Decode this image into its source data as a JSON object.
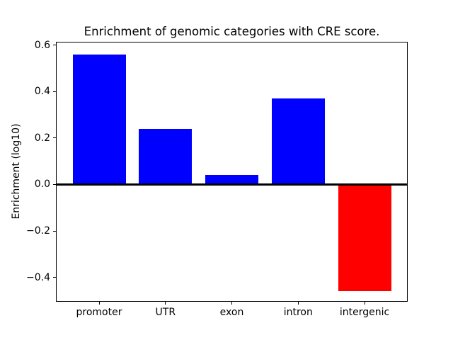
{
  "chart_data": {
    "type": "bar",
    "title": "Enrichment of genomic categories with CRE score.",
    "ylabel": "Enrichment (log10)",
    "xlabel": "",
    "categories": [
      "promoter",
      "UTR",
      "exon",
      "intron",
      "intergenic"
    ],
    "values": [
      0.56,
      0.24,
      0.04,
      0.37,
      -0.46
    ],
    "bar_colors": [
      "#0000ff",
      "#0000ff",
      "#0000ff",
      "#0000ff",
      "#ff0000"
    ],
    "positive_color": "#0000ff",
    "negative_color": "#ff0000",
    "bar_width": 0.8,
    "xlim": [
      -0.64,
      4.64
    ],
    "ylim": [
      -0.502,
      0.611
    ],
    "yticks": [
      {
        "value": 0.6,
        "label": "0.6"
      },
      {
        "value": 0.4,
        "label": "0.4"
      },
      {
        "value": 0.2,
        "label": "0.2"
      },
      {
        "value": 0.0,
        "label": "0.0"
      },
      {
        "value": -0.2,
        "label": "−0.2"
      },
      {
        "value": -0.4,
        "label": "−0.4"
      }
    ],
    "grid": false,
    "legend": null,
    "zero_line": true,
    "axis_color": "#000000",
    "background_color": "#ffffff"
  }
}
